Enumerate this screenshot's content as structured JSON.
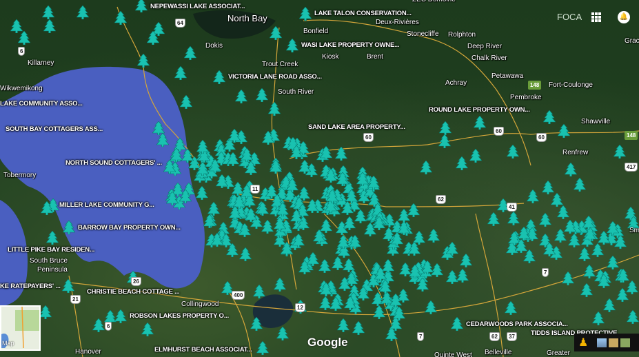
{
  "header": {
    "brand": "FOCA",
    "apps_icon": "apps-grid-icon",
    "account_icon": "bell-icon"
  },
  "colors": {
    "marker": "#19c2b0",
    "water": "#4a5fc0",
    "road": "#d4a63a"
  },
  "marker_icon": "pine-tree-icon",
  "associations": [
    "NEPEWASSI LAKE ASSOCIAT...",
    "LAKE TALON CONSERVATION...",
    "WASI LAKE PROPERTY OWNE...",
    "VICTORIA LANE ROAD ASSO...",
    "LAKE COMMUNITY ASSO...",
    "ROUND LAKE PROPERTY OWN...",
    "SOUTH BAY COTTAGERS ASS...",
    "SAND LAKE AREA PROPERTY...",
    "NORTH SOUND COTTAGERS' ...",
    "MILLER LAKE COMMUNITY G...",
    "BARROW BAY PROPERTY OWN...",
    "LITTLE PIKE BAY RESIDEN...",
    "KE RATEPAYERS' ...",
    "CHRISTIE BEACH COTTAGE ...",
    "ROBSON LAKES PROPERTY O...",
    "CEDARWOODS PARK ASSOCIA...",
    "TIDDS ISLAND PROTECTIVE",
    "ELMHURST BEACH ASSOCIAT..."
  ],
  "places": [
    "North Bay",
    "Bonfield",
    "Deux-Rivières",
    "Stonecliffe",
    "Rolphton",
    "Deep River",
    "Chalk River",
    "Petawawa",
    "Achray",
    "Fort-Coulonge",
    "Pembroke",
    "Shawville",
    "Renfrew",
    "Dokis",
    "Trout Creek",
    "South River",
    "Kiosk",
    "Brent",
    "Killarney",
    "Wikwemikong",
    "Tobermory",
    "South Bruce",
    "Peninsula",
    "Collingwood",
    "Hanover",
    "Belleville",
    "Quinte West",
    "Greater",
    "ZEC Dumoine",
    "Grac",
    "Sm"
  ],
  "highways": [
    "64",
    "6",
    "11",
    "60",
    "60",
    "60",
    "62",
    "62",
    "41",
    "7",
    "7",
    "400",
    "12",
    "26",
    "21",
    "148",
    "148",
    "417",
    "37",
    "6"
  ],
  "minimap": {
    "label": "Map"
  },
  "attribution": "Google",
  "controls": {
    "pegman": "pegman-icon",
    "layers": [
      "terrain-layer",
      "satellite-layer",
      "map-layer"
    ]
  }
}
